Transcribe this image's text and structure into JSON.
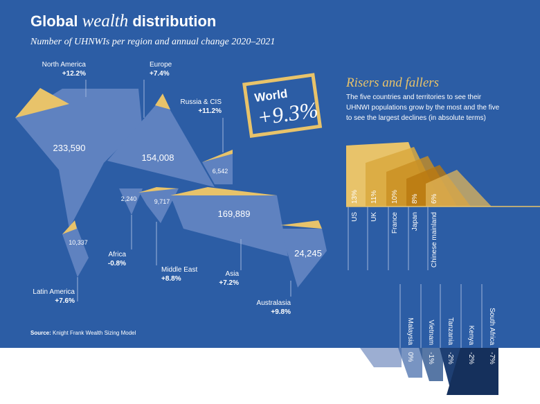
{
  "header": {
    "title_prefix": "Global ",
    "title_emphasis": "wealth",
    "title_suffix": " distribution",
    "subtitle": "Number of UHNWIs per region and annual change 2020–2021"
  },
  "world": {
    "label": "World",
    "change": "+9.3%"
  },
  "regions": [
    {
      "name": "North America",
      "change": "+12.2%",
      "count": "233,590"
    },
    {
      "name": "Europe",
      "change": "+7.4%",
      "count": "154,008"
    },
    {
      "name": "Russia & CIS",
      "change": "+11.2%",
      "count": "6,542"
    },
    {
      "name": "Latin America",
      "change": "+7.6%",
      "count": "10,337"
    },
    {
      "name": "Africa",
      "change": "-0.8%",
      "count": "2,240"
    },
    {
      "name": "Middle East",
      "change": "+8.8%",
      "count": "9,717"
    },
    {
      "name": "Asia",
      "change": "+7.2%",
      "count": "169,889"
    },
    {
      "name": "Australasia",
      "change": "+9.8%",
      "count": "24,245"
    }
  ],
  "risers_fallers": {
    "title": "Risers and fallers",
    "description_lines": [
      "The five countries and territories to see their",
      "UHNWI populations grow by the most and the five",
      "to see the largest declines (in absolute terms)"
    ],
    "risers": [
      {
        "country": "US",
        "change": "13%"
      },
      {
        "country": "UK",
        "change": "11%"
      },
      {
        "country": "France",
        "change": "10%"
      },
      {
        "country": "Japan",
        "change": "8%"
      },
      {
        "country": "Chinese mainland",
        "change": "6%"
      }
    ],
    "fallers": [
      {
        "country": "Malaysia",
        "change": "0%"
      },
      {
        "country": "Vietnam",
        "change": "-1%"
      },
      {
        "country": "Tanzania",
        "change": "-2%"
      },
      {
        "country": "Kenya",
        "change": "-2%"
      },
      {
        "country": "South Africa",
        "change": "-7%"
      }
    ]
  },
  "source": {
    "label": "Source:",
    "text": "Knight Frank Wealth Sizing Model"
  }
}
